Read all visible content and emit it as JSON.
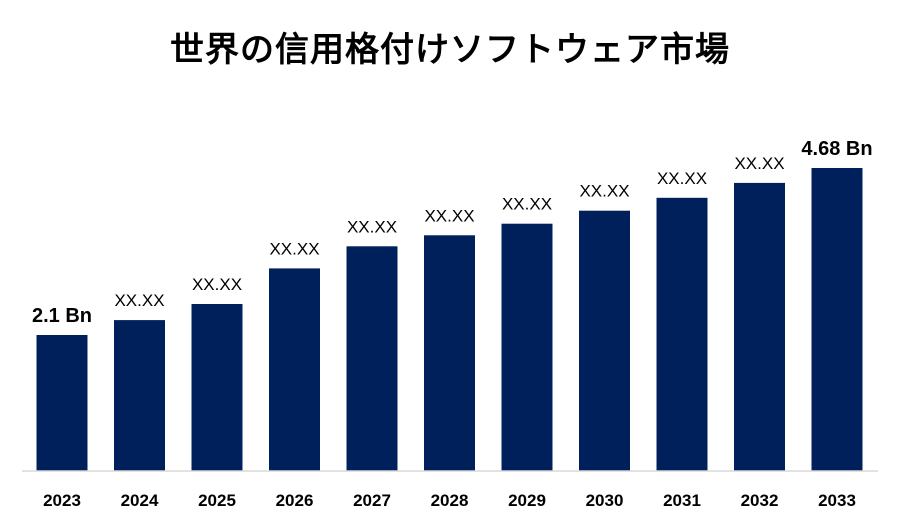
{
  "chart_data": {
    "type": "bar",
    "title": "世界の信用格付けソフトウェア市場",
    "xlabel": "",
    "ylabel": "",
    "categories": [
      "2023",
      "2024",
      "2025",
      "2026",
      "2027",
      "2028",
      "2029",
      "2030",
      "2031",
      "2032",
      "2033"
    ],
    "values": [
      2.1,
      2.33,
      2.58,
      3.13,
      3.47,
      3.64,
      3.82,
      4.02,
      4.22,
      4.45,
      4.68
    ],
    "data_labels": [
      "2.1 Bn",
      "XX.XX",
      "XX.XX",
      "XX.XX",
      "XX.XX",
      "XX.XX",
      "XX.XX",
      "XX.XX",
      "XX.XX",
      "XX.XX",
      "4.68 Bn"
    ],
    "ylim": [
      0,
      5.2
    ],
    "grid": false,
    "legend": "none",
    "bar_color": "#00205B",
    "axis_color": "#D9D9D9"
  }
}
